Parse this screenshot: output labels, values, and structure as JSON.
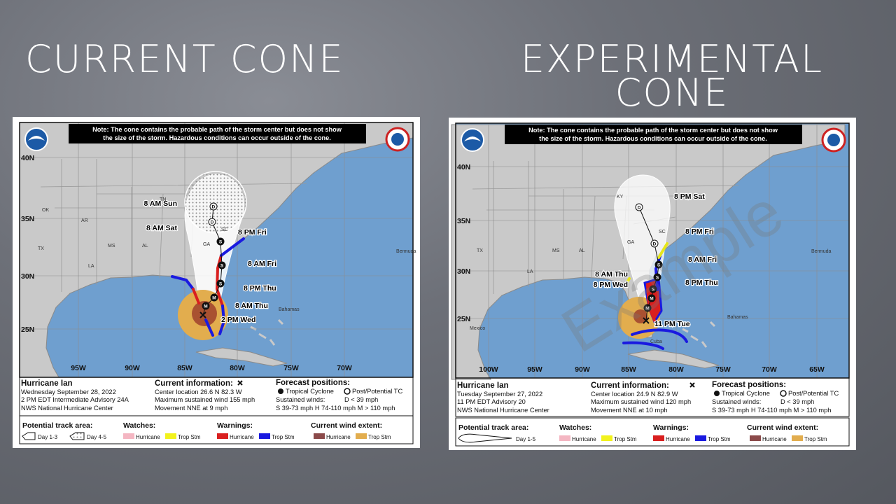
{
  "headings": [
    [
      "CURRENT CONE"
    ],
    [
      "EXPERIMENTAL",
      "CONE"
    ]
  ],
  "panels": [
    {
      "note": [
        "Note: The cone contains the probable path of the storm center but does not show",
        "the size of the storm. Hazardous conditions can occur outside of the cone."
      ],
      "lat_labels": [
        "40N",
        "35N",
        "30N",
        "25N"
      ],
      "lon_labels": [
        "95W",
        "90W",
        "85W",
        "80W",
        "75W",
        "70W"
      ],
      "places": [
        "OK",
        "AR",
        "TN",
        "MS",
        "AL",
        "GA",
        "SC",
        "LA",
        "TX",
        "Bermuda",
        "Bahamas"
      ],
      "forecast_labels": [
        "8 AM Sun",
        "8 AM Sat",
        "8 PM Fri",
        "8 AM Fri",
        "8 PM Thu",
        "8 AM Thu",
        "2 PM Wed"
      ],
      "storm_points": [
        "D",
        "D",
        "S",
        "S",
        "S",
        "M",
        "M"
      ],
      "info": {
        "storm": "Hurricane Ian",
        "date": "Wednesday September 28, 2022",
        "advisory": "2 PM EDT Intermediate Advisory 24A",
        "center": "NWS National Hurricane Center"
      },
      "current": {
        "title": "Current information:",
        "location": "Center location 26.6 N 82.3 W",
        "wind": "Maximum sustained wind 155 mph",
        "movement": "Movement NNE at 9 mph"
      },
      "forecast": {
        "title": "Forecast positions:",
        "tropical": "Tropical Cyclone",
        "post": "Post/Potential TC",
        "winds": "Sustained winds:",
        "d": "D < 39 mph",
        "scale": "S 39-73 mph  H 74-110 mph  M > 110 mph"
      },
      "legend": {
        "track_title": "Potential track area:",
        "track_items": [
          "Day 1-3",
          "Day 4-5"
        ],
        "watches": "Watches:",
        "warnings": "Warnings:",
        "wind": "Current wind extent:",
        "hurricane": "Hurricane",
        "trop_stm": "Trop Stm"
      }
    },
    {
      "note": [
        "Note: The cone contains the probable path of the storm center but does not show",
        "the size of the storm. Hazardous conditions can occur outside of the cone."
      ],
      "lat_labels": [
        "40N",
        "35N",
        "30N",
        "25N"
      ],
      "lon_labels": [
        "100W",
        "95W",
        "90W",
        "85W",
        "80W",
        "75W",
        "70W",
        "65W"
      ],
      "places": [
        "TX",
        "LA",
        "MS",
        "AL",
        "GA",
        "SC",
        "KY",
        "Bermuda",
        "Bahamas",
        "Mexico",
        "Cuba"
      ],
      "forecast_labels": [
        "8 PM Sat",
        "8 PM Fri",
        "8 AM Fri",
        "8 AM Thu",
        "8 PM Thu",
        "8 PM Wed",
        "11 PM Tue"
      ],
      "storm_points": [
        "D",
        "D",
        "S",
        "S",
        "S",
        "M",
        "M"
      ],
      "watermark": "Example",
      "info": {
        "storm": "Hurricane Ian",
        "date": "Tuesday September 27, 2022",
        "advisory": "11 PM EDT Advisory 20",
        "center": "NWS National Hurricane Center"
      },
      "current": {
        "title": "Current information:",
        "location": "Center location 24.9 N 82.9 W",
        "wind": "Maximum sustained wind 120 mph",
        "movement": "Movement NNE at 10 mph"
      },
      "forecast": {
        "title": "Forecast positions:",
        "tropical": "Tropical Cyclone",
        "post": "Post/Potential TC",
        "winds": "Sustained winds:",
        "d": "D < 39 mph",
        "scale": "S 39-73 mph  H 74-110 mph  M > 110 mph"
      },
      "legend": {
        "track_title": "Potential track area:",
        "track_items": [
          "Day 1-5"
        ],
        "watches": "Watches:",
        "warnings": "Warnings:",
        "wind": "Current wind extent:",
        "hurricane": "Hurricane",
        "trop_stm": "Trop Stm"
      }
    }
  ]
}
